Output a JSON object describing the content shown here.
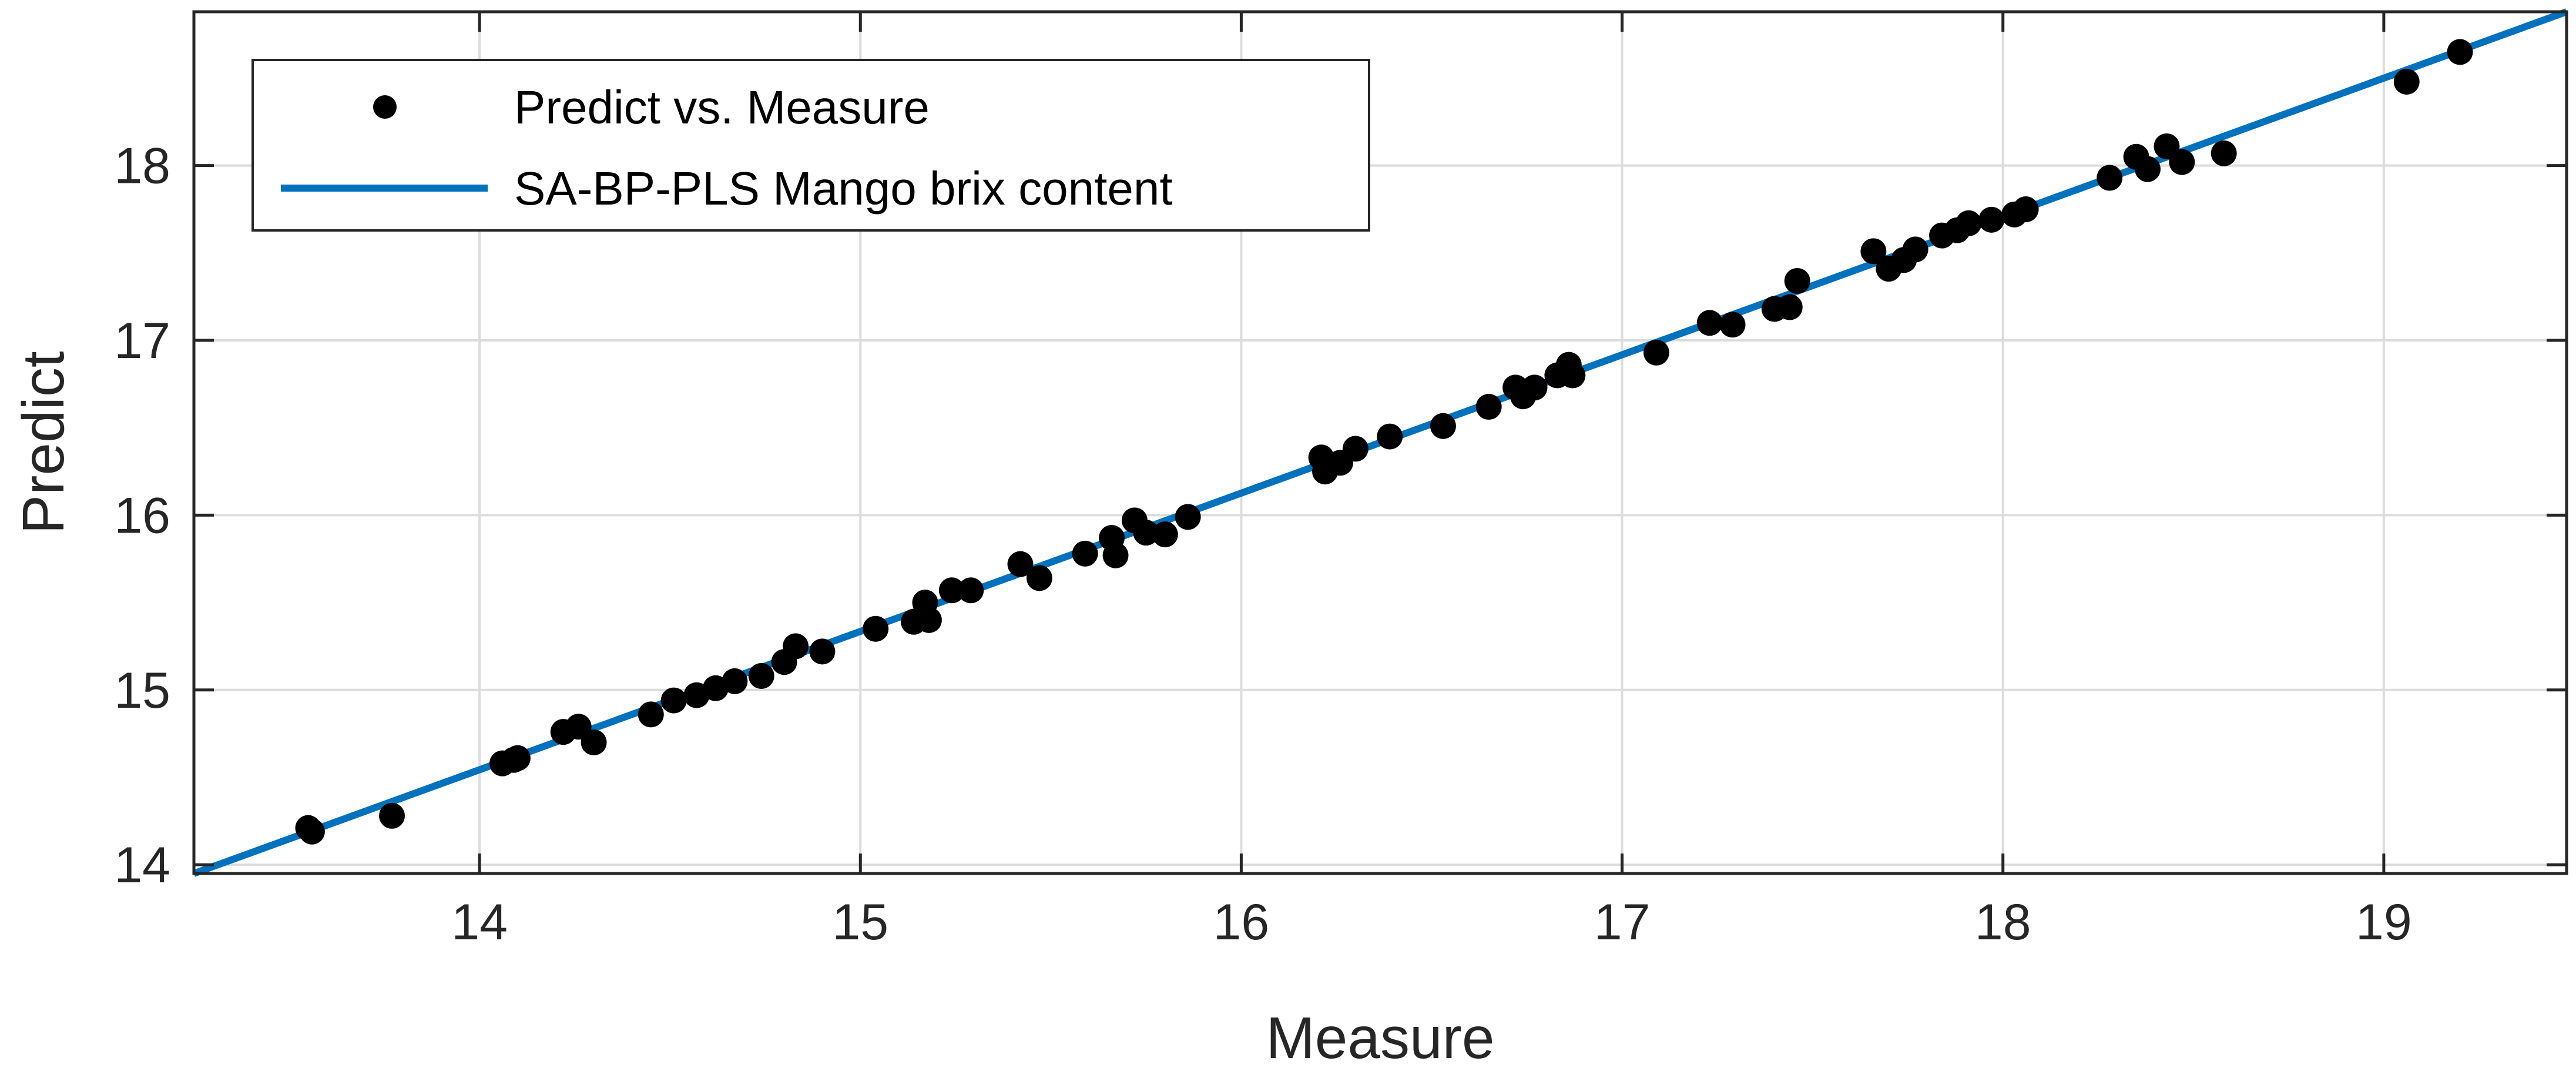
{
  "chart_data": {
    "type": "scatter",
    "xlabel": "Measure",
    "ylabel": "Predict",
    "xlim": [
      13.25,
      19.48
    ],
    "ylim": [
      13.95,
      18.88
    ],
    "xticks": [
      "14",
      "15",
      "16",
      "17",
      "18",
      "19"
    ],
    "yticks": [
      "14",
      "15",
      "16",
      "17",
      "18"
    ],
    "grid": true,
    "legend_position": "top-left",
    "series": [
      {
        "name": "Predict vs. Measure",
        "kind": "scatter",
        "color": "#000000",
        "points": [
          [
            13.55,
            14.21
          ],
          [
            13.56,
            14.19
          ],
          [
            13.77,
            14.28
          ],
          [
            14.06,
            14.58
          ],
          [
            14.09,
            14.6
          ],
          [
            14.1,
            14.61
          ],
          [
            14.22,
            14.76
          ],
          [
            14.26,
            14.79
          ],
          [
            14.3,
            14.7
          ],
          [
            14.45,
            14.86
          ],
          [
            14.51,
            14.94
          ],
          [
            14.57,
            14.97
          ],
          [
            14.62,
            15.01
          ],
          [
            14.67,
            15.05
          ],
          [
            14.74,
            15.08
          ],
          [
            14.8,
            15.16
          ],
          [
            14.83,
            15.25
          ],
          [
            14.9,
            15.22
          ],
          [
            15.04,
            15.35
          ],
          [
            15.14,
            15.39
          ],
          [
            15.17,
            15.5
          ],
          [
            15.18,
            15.4
          ],
          [
            15.24,
            15.57
          ],
          [
            15.29,
            15.57
          ],
          [
            15.42,
            15.72
          ],
          [
            15.47,
            15.64
          ],
          [
            15.59,
            15.78
          ],
          [
            15.66,
            15.87
          ],
          [
            15.67,
            15.77
          ],
          [
            15.72,
            15.97
          ],
          [
            15.75,
            15.9
          ],
          [
            15.8,
            15.89
          ],
          [
            15.86,
            15.99
          ],
          [
            16.21,
            16.33
          ],
          [
            16.22,
            16.25
          ],
          [
            16.26,
            16.3
          ],
          [
            16.3,
            16.38
          ],
          [
            16.39,
            16.45
          ],
          [
            16.53,
            16.51
          ],
          [
            16.65,
            16.62
          ],
          [
            16.72,
            16.73
          ],
          [
            16.74,
            16.68
          ],
          [
            16.77,
            16.73
          ],
          [
            16.83,
            16.8
          ],
          [
            16.86,
            16.86
          ],
          [
            16.87,
            16.8
          ],
          [
            17.09,
            16.93
          ],
          [
            17.23,
            17.1
          ],
          [
            17.29,
            17.09
          ],
          [
            17.4,
            17.18
          ],
          [
            17.44,
            17.19
          ],
          [
            17.46,
            17.34
          ],
          [
            17.66,
            17.51
          ],
          [
            17.7,
            17.41
          ],
          [
            17.74,
            17.46
          ],
          [
            17.77,
            17.52
          ],
          [
            17.84,
            17.6
          ],
          [
            17.88,
            17.63
          ],
          [
            17.91,
            17.67
          ],
          [
            17.97,
            17.69
          ],
          [
            18.03,
            17.72
          ],
          [
            18.06,
            17.75
          ],
          [
            18.28,
            17.93
          ],
          [
            18.35,
            18.05
          ],
          [
            18.38,
            17.98
          ],
          [
            18.43,
            18.11
          ],
          [
            18.47,
            18.02
          ],
          [
            18.58,
            18.07
          ],
          [
            19.06,
            18.48
          ],
          [
            19.2,
            18.65
          ]
        ]
      },
      {
        "name": "SA-BP-PLS Mango brix content",
        "kind": "line",
        "color": "#0072BD",
        "points": [
          [
            13.25,
            13.95
          ],
          [
            19.48,
            18.88
          ]
        ]
      }
    ]
  }
}
